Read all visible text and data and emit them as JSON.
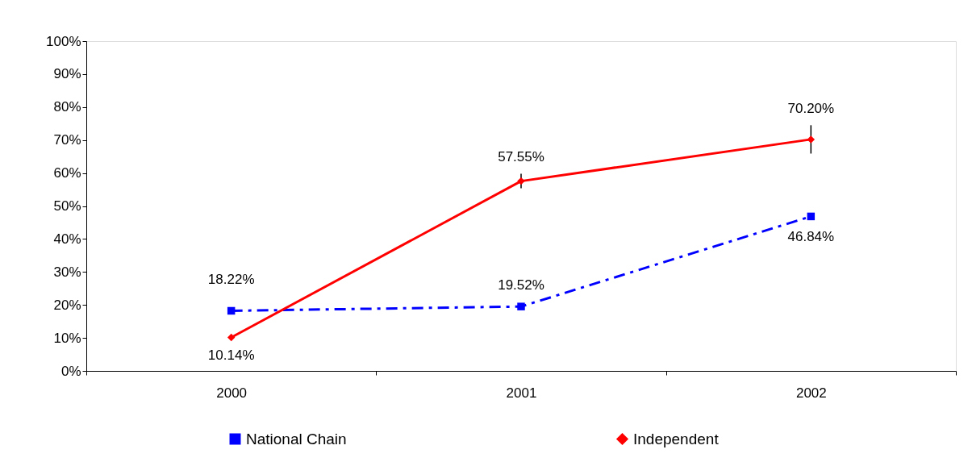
{
  "chart_data": {
    "type": "line",
    "categories": [
      "2000",
      "2001",
      "2002"
    ],
    "series": [
      {
        "name": "National Chain",
        "color": "#0000ff",
        "values": [
          18.22,
          19.52,
          46.84
        ],
        "marker": "square",
        "line_style": "dashed",
        "value_labels": [
          "18.22%",
          "19.52%",
          "46.84%"
        ]
      },
      {
        "name": "Independent",
        "color": "#ff0000",
        "values": [
          10.14,
          57.55,
          70.2
        ],
        "marker": "diamond",
        "line_style": "solid",
        "value_labels": [
          "10.14%",
          "57.55%",
          "70.20%"
        ],
        "errors": [
          null,
          2.2,
          4.3
        ]
      }
    ],
    "ylim": [
      0,
      100
    ],
    "yticks": [
      {
        "value": 0,
        "label": "0%"
      },
      {
        "value": 10,
        "label": "10%"
      },
      {
        "value": 20,
        "label": "20%"
      },
      {
        "value": 30,
        "label": "30%"
      },
      {
        "value": 40,
        "label": "40%"
      },
      {
        "value": 50,
        "label": "50%"
      },
      {
        "value": 60,
        "label": "60%"
      },
      {
        "value": 70,
        "label": "70%"
      },
      {
        "value": 80,
        "label": "80%"
      },
      {
        "value": 90,
        "label": "90%"
      },
      {
        "value": 100,
        "label": "100%"
      }
    ],
    "grid": false,
    "legend": "bottom"
  }
}
